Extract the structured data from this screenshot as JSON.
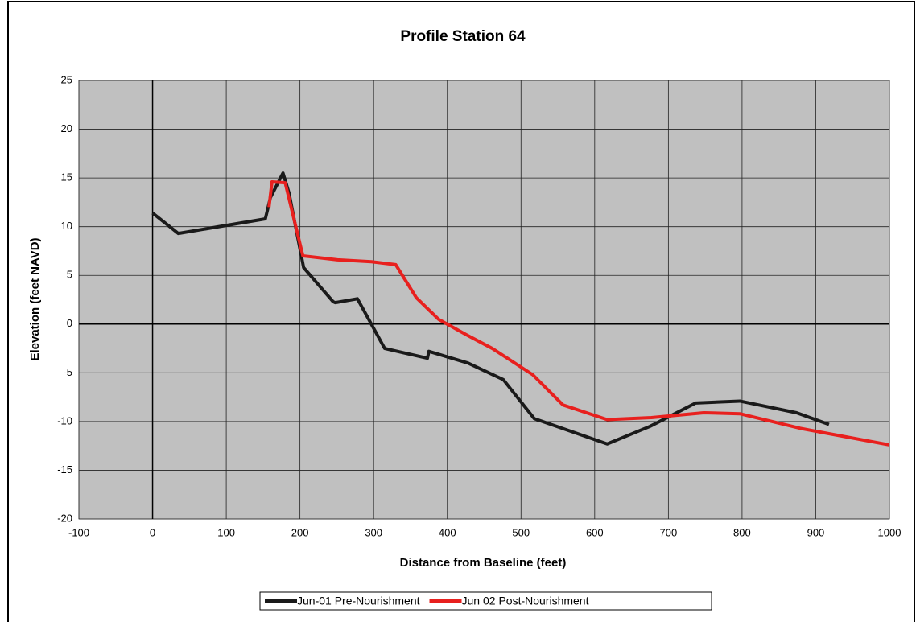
{
  "chart_data": {
    "type": "line",
    "title": "Profile Station 64",
    "xlabel": "Distance from Baseline (feet)",
    "ylabel": "Elevation (feet NAVD)",
    "xlim": [
      -100,
      1000
    ],
    "xticks": [
      -100,
      0,
      100,
      200,
      300,
      400,
      500,
      600,
      700,
      800,
      900,
      1000
    ],
    "ylim": [
      -20,
      25
    ],
    "yticks": [
      -20,
      -15,
      -10,
      -5,
      0,
      5,
      10,
      15,
      20,
      25
    ],
    "grid": true,
    "legend": "bottom",
    "series": [
      {
        "name": "Jun-01 Pre-Nourishment",
        "color": "#1a1a1a",
        "x": [
          0,
          35,
          153,
          160,
          177,
          185,
          205,
          245,
          248,
          278,
          315,
          373,
          375,
          428,
          476,
          518,
          617,
          675,
          737,
          797,
          874,
          918
        ],
        "values": [
          11.4,
          9.3,
          10.8,
          13,
          15.5,
          13.5,
          5.8,
          2.3,
          2.2,
          2.6,
          -2.5,
          -3.5,
          -2.8,
          -4.0,
          -5.7,
          -9.7,
          -12.3,
          -10.5,
          -8.1,
          -7.9,
          -9.1,
          -10.3
        ]
      },
      {
        "name": "Jun 02 Post-Nourishment",
        "color": "#e8201e",
        "x": [
          158,
          162,
          180,
          204,
          251,
          297,
          330,
          358,
          388,
          426,
          461,
          516,
          557,
          617,
          677,
          748,
          797,
          879,
          1000
        ],
        "values": [
          12.0,
          14.6,
          14.5,
          7.0,
          6.6,
          6.4,
          6.1,
          2.7,
          0.5,
          -1.1,
          -2.5,
          -5.2,
          -8.3,
          -9.8,
          -9.6,
          -9.1,
          -9.2,
          -10.7,
          -12.4
        ]
      }
    ]
  }
}
